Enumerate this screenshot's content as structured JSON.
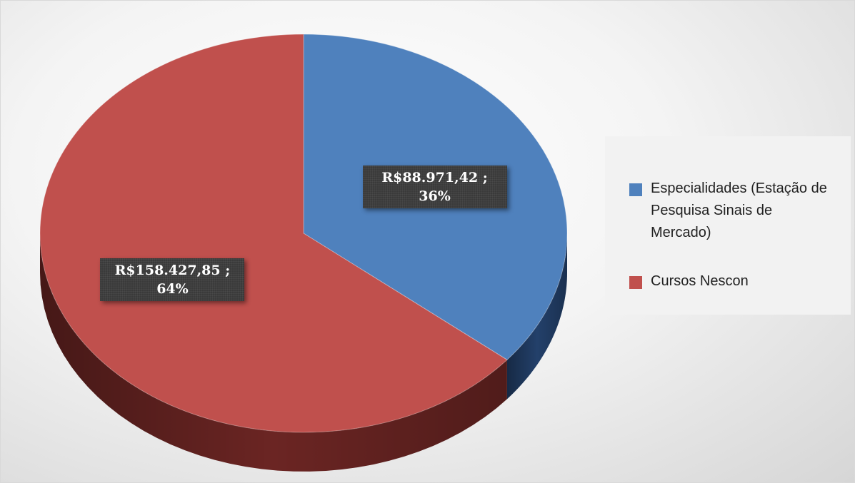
{
  "chart_data": {
    "type": "pie",
    "categories": [
      "Especialidades (Estação de Pesquisa Sinais de Mercado)",
      "Cursos Nescon"
    ],
    "values": [
      88971.42,
      158427.85
    ],
    "value_labels": [
      "R$88.971,42 ; 36%",
      "R$158.427,85 ; 64%"
    ],
    "colors": [
      "#4f81bd",
      "#c0504d"
    ],
    "side_colors": [
      "#23406a",
      "#6b2523"
    ],
    "legend": "right"
  }
}
